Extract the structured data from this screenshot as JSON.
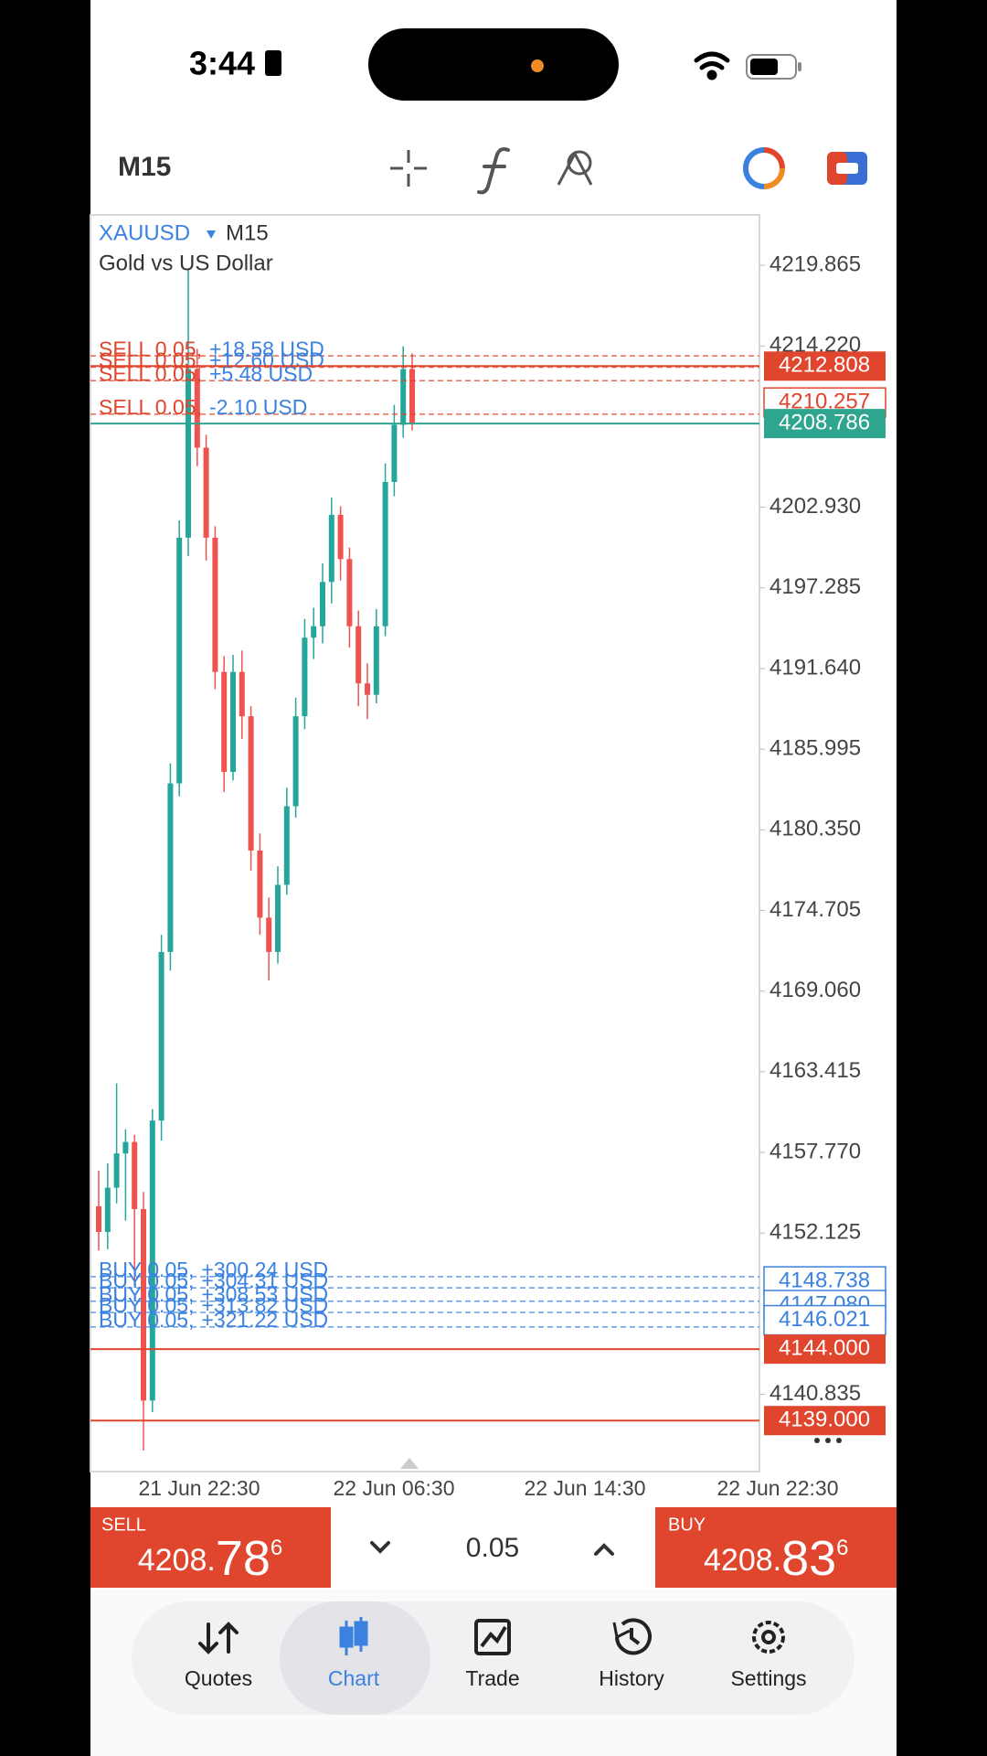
{
  "status_bar": {
    "time": "3:44"
  },
  "toolbar": {
    "timeframe": "M15"
  },
  "symbol": {
    "name": "XAUUSD",
    "timeframe": "M15",
    "description": "Gold vs US Dollar"
  },
  "chart_data": {
    "type": "candlestick",
    "up_color": "#26a69a",
    "down_color": "#ef5350",
    "ylim": [
      4135.43,
      4223.39
    ],
    "yticks": [
      4219.865,
      {
        "value": 4214.22,
        "label": "4214.220"
      },
      {
        "value": 4202.93,
        "label": "4202.930"
      },
      4197.285,
      {
        "value": 4191.64,
        "label": "4191.640"
      },
      4185.995,
      {
        "value": 4180.35,
        "label": "4180.350"
      },
      4174.705,
      {
        "value": 4169.06,
        "label": "4169.060"
      },
      4163.415,
      {
        "value": 4157.77,
        "label": "4157.770"
      },
      4152.125,
      4140.835
    ],
    "x_labels": [
      "21 Jun 22:30",
      "22 Jun 06:30",
      "22 Jun 14:30",
      "22 Jun 22:30"
    ],
    "candles": [
      {
        "open": 4154.0,
        "high": 4156.5,
        "low": 4150.9,
        "close": 4152.2
      },
      {
        "open": 4152.2,
        "high": 4157.0,
        "low": 4151.0,
        "close": 4155.3
      },
      {
        "open": 4155.3,
        "high": 4162.6,
        "low": 4154.2,
        "close": 4157.7
      },
      {
        "open": 4157.7,
        "high": 4159.4,
        "low": 4153.0,
        "close": 4158.5
      },
      {
        "open": 4158.5,
        "high": 4159.0,
        "low": 4148.5,
        "close": 4153.8
      },
      {
        "open": 4153.8,
        "high": 4155.0,
        "low": 4136.9,
        "close": 4140.4
      },
      {
        "open": 4140.4,
        "high": 4160.8,
        "low": 4139.6,
        "close": 4160.0
      },
      {
        "open": 4160.0,
        "high": 4173.0,
        "low": 4158.6,
        "close": 4171.8
      },
      {
        "open": 4171.8,
        "high": 4185.0,
        "low": 4170.5,
        "close": 4183.6
      },
      {
        "open": 4183.6,
        "high": 4202.0,
        "low": 4182.7,
        "close": 4200.8
      },
      {
        "open": 4200.8,
        "high": 4219.6,
        "low": 4199.5,
        "close": 4212.6
      },
      {
        "open": 4212.6,
        "high": 4214.0,
        "low": 4205.8,
        "close": 4207.1
      },
      {
        "open": 4207.1,
        "high": 4208.0,
        "low": 4199.2,
        "close": 4200.8
      },
      {
        "open": 4200.8,
        "high": 4201.6,
        "low": 4190.2,
        "close": 4191.4
      },
      {
        "open": 4191.4,
        "high": 4192.5,
        "low": 4183.0,
        "close": 4184.4
      },
      {
        "open": 4184.4,
        "high": 4192.6,
        "low": 4183.8,
        "close": 4191.4
      },
      {
        "open": 4191.4,
        "high": 4192.9,
        "low": 4186.7,
        "close": 4188.3
      },
      {
        "open": 4188.3,
        "high": 4189.0,
        "low": 4177.5,
        "close": 4178.9
      },
      {
        "open": 4178.9,
        "high": 4180.1,
        "low": 4173.0,
        "close": 4174.2
      },
      {
        "open": 4174.2,
        "high": 4175.6,
        "low": 4169.8,
        "close": 4171.8
      },
      {
        "open": 4171.8,
        "high": 4177.8,
        "low": 4171.0,
        "close": 4176.5
      },
      {
        "open": 4176.5,
        "high": 4183.3,
        "low": 4175.8,
        "close": 4182.0
      },
      {
        "open": 4182.0,
        "high": 4189.6,
        "low": 4181.2,
        "close": 4188.3
      },
      {
        "open": 4188.3,
        "high": 4195.1,
        "low": 4187.4,
        "close": 4193.8
      },
      {
        "open": 4193.8,
        "high": 4195.9,
        "low": 4192.3,
        "close": 4194.6
      },
      {
        "open": 4194.6,
        "high": 4199.0,
        "low": 4193.4,
        "close": 4197.7
      },
      {
        "open": 4197.7,
        "high": 4203.6,
        "low": 4196.2,
        "close": 4202.4
      },
      {
        "open": 4202.4,
        "high": 4203.0,
        "low": 4197.8,
        "close": 4199.3
      },
      {
        "open": 4199.3,
        "high": 4200.1,
        "low": 4193.1,
        "close": 4194.6
      },
      {
        "open": 4194.6,
        "high": 4195.7,
        "low": 4189.0,
        "close": 4190.6
      },
      {
        "open": 4190.6,
        "high": 4192.0,
        "low": 4188.1,
        "close": 4189.8
      },
      {
        "open": 4189.8,
        "high": 4195.8,
        "low": 4189.2,
        "close": 4194.6
      },
      {
        "open": 4194.6,
        "high": 4206.0,
        "low": 4193.9,
        "close": 4204.7
      },
      {
        "open": 4204.7,
        "high": 4210.1,
        "low": 4203.7,
        "close": 4208.7
      },
      {
        "open": 4208.7,
        "high": 4214.2,
        "low": 4207.8,
        "close": 4212.6
      },
      {
        "open": 4212.6,
        "high": 4213.7,
        "low": 4208.3,
        "close": 4208.8
      }
    ],
    "positions": [
      {
        "side": "SELL 0.05,",
        "profit": "+18.58 USD",
        "price": 4213.52,
        "color": "#e0452d"
      },
      {
        "side": "SELL 0.05,",
        "profit": "+12.60 USD",
        "price": 4212.73,
        "color": "#e0452d"
      },
      {
        "side": "SELL 0.05,",
        "profit": "+5.48 USD",
        "price": 4211.79,
        "color": "#e0452d"
      },
      {
        "side": "SELL 0.05,",
        "profit": "-2.10 USD",
        "price": 4209.44,
        "color": "#e0452d"
      },
      {
        "side": "BUY 0.05,",
        "profit": "+300.24 USD",
        "price": 4149.07,
        "color": "#3b82e0"
      },
      {
        "side": "BUY 0.05,",
        "profit": "+304.31 USD",
        "price": 4148.29,
        "color": "#3b82e0"
      },
      {
        "side": "BUY 0.05,",
        "profit": "+308.53 USD",
        "price": 4147.35,
        "color": "#3b82e0"
      },
      {
        "side": "BUY 0.05,",
        "profit": "+313.82 USD",
        "price": 4146.57,
        "color": "#3b82e0"
      },
      {
        "side": "BUY 0.05,",
        "profit": "+321.22 USD",
        "price": 4145.55,
        "color": "#3b82e0"
      }
    ],
    "price_levels": [
      {
        "label": "4212.808",
        "value": 4212.808,
        "color": "#e0452d",
        "filled": true
      },
      {
        "label": "4210.257",
        "value": 4210.257,
        "color": "#e0452d",
        "filled": false
      },
      {
        "label": "4208.786",
        "value": 4208.786,
        "color": "#2ea58f",
        "filled": true
      },
      {
        "label": "4148.738",
        "value": 4148.738,
        "color": "#3b82e0",
        "filled": false
      },
      {
        "label": "4147.080",
        "value": 4147.08,
        "color": "#3b82e0",
        "filled": false
      },
      {
        "label": "4146.021",
        "value": 4146.021,
        "color": "#3b82e0",
        "filled": false
      },
      {
        "label": "4144.000",
        "value": 4144,
        "color": "#e0452d",
        "filled": true
      },
      {
        "label": "4139.000",
        "value": 4139,
        "color": "#e0452d",
        "filled": true
      }
    ]
  },
  "trade_bar": {
    "sell": {
      "label": "SELL",
      "main": "4208.",
      "big": "78",
      "sup": "6"
    },
    "volume": "0.05",
    "buy": {
      "label": "BUY",
      "main": "4208.",
      "big": "83",
      "sup": "6"
    }
  },
  "nav": {
    "tabs": [
      "Quotes",
      "Chart",
      "Trade",
      "History",
      "Settings"
    ]
  }
}
